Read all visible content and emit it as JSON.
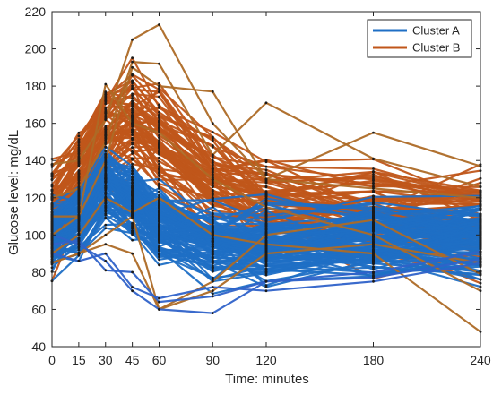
{
  "chart_data": {
    "type": "line",
    "title": "",
    "xlabel": "Time: minutes",
    "ylabel": "Glucose level: mg/dL",
    "xlim": [
      0,
      240
    ],
    "ylim": [
      40,
      220
    ],
    "x_ticks": [
      0,
      15,
      30,
      45,
      60,
      90,
      120,
      180,
      240
    ],
    "y_ticks": [
      40,
      60,
      80,
      100,
      120,
      140,
      160,
      180,
      200,
      220
    ],
    "grid": false,
    "legend_position": "top-right",
    "x": [
      0,
      15,
      30,
      45,
      60,
      90,
      120,
      180,
      240
    ],
    "series": [
      {
        "name": "Cluster A",
        "color": "#1f6fc5",
        "profile": [
          98,
          108,
          125,
          118,
          105,
          95,
          93,
          95,
          97
        ],
        "spread": 12,
        "count": 110
      },
      {
        "name": "Cluster B",
        "color": "#c0561a",
        "profile": [
          115,
          130,
          155,
          160,
          150,
          130,
          118,
          112,
          108
        ],
        "spread": 14,
        "count": 70
      }
    ],
    "accent_lines": [
      {
        "color": "#ad6a26",
        "values": [
          138,
          140,
          162,
          205,
          213,
          160,
          130,
          125,
          120
        ]
      },
      {
        "color": "#ad6a26",
        "values": [
          120,
          125,
          150,
          193,
          192,
          143,
          171,
          141,
          126
        ]
      },
      {
        "color": "#ad6a26",
        "values": [
          110,
          110,
          140,
          190,
          180,
          177,
          130,
          155,
          137
        ]
      },
      {
        "color": "#ad6a26",
        "values": [
          100,
          110,
          181,
          160,
          155,
          130,
          115,
          100,
          70
        ]
      },
      {
        "color": "#ad6a26",
        "values": [
          90,
          100,
          120,
          112,
          120,
          100,
          95,
          90,
          48
        ]
      },
      {
        "color": "#ad6a26",
        "values": [
          85,
          90,
          100,
          110,
          60,
          75,
          100,
          108,
          79
        ]
      },
      {
        "color": "#ad6a26",
        "values": [
          85,
          90,
          95,
          90,
          60,
          70,
          90,
          95,
          85
        ]
      },
      {
        "color": "#2f62c9",
        "values": [
          100,
          95,
          86,
          70,
          60,
          58,
          75,
          80,
          91
        ]
      },
      {
        "color": "#2f62c9",
        "values": [
          95,
          97,
          81,
          80,
          64,
          67,
          75,
          77,
          87
        ]
      },
      {
        "color": "#2f62c9",
        "values": [
          90,
          86,
          90,
          72,
          66,
          72,
          70,
          75,
          85
        ]
      }
    ]
  }
}
